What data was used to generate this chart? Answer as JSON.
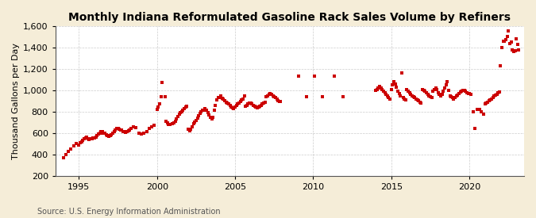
{
  "title": "Monthly Indiana Reformulated Gasoline Rack Sales Volume by Refiners",
  "ylabel": "Thousand Gallons per Day",
  "source": "Source: U.S. Energy Information Administration",
  "ylim": [
    200,
    1600
  ],
  "yticks": [
    200,
    400,
    600,
    800,
    1000,
    1200,
    1400,
    1600
  ],
  "xlim_start": 1993.5,
  "xlim_end": 2023.5,
  "xticks": [
    1995,
    2000,
    2005,
    2010,
    2015,
    2020
  ],
  "dot_color": "#cc0000",
  "bg_color": "#f5edd8",
  "plot_bg_color": "#ffffff",
  "grid_color": "#aaaaaa",
  "title_fontsize": 10,
  "label_fontsize": 8,
  "tick_fontsize": 8,
  "marker_size": 5,
  "data_x": [
    1994.0,
    1994.167,
    1994.333,
    1994.5,
    1994.667,
    1994.833,
    1995.0,
    1995.083,
    1995.167,
    1995.25,
    1995.333,
    1995.417,
    1995.5,
    1995.583,
    1995.667,
    1995.75,
    1995.833,
    1995.917,
    1996.0,
    1996.083,
    1996.167,
    1996.25,
    1996.333,
    1996.417,
    1996.5,
    1996.583,
    1996.667,
    1996.75,
    1996.833,
    1996.917,
    1997.0,
    1997.083,
    1997.167,
    1997.25,
    1997.333,
    1997.417,
    1997.5,
    1997.583,
    1997.667,
    1997.75,
    1997.833,
    1997.917,
    1998.0,
    1998.083,
    1998.167,
    1998.25,
    1998.333,
    1998.5,
    1998.667,
    1998.833,
    1999.0,
    1999.167,
    1999.333,
    1999.5,
    1999.667,
    1999.833,
    2000.0,
    2000.083,
    2000.167,
    2000.25,
    2000.333,
    2000.5,
    2000.583,
    2000.667,
    2000.75,
    2000.833,
    2001.0,
    2001.083,
    2001.167,
    2001.25,
    2001.333,
    2001.417,
    2001.5,
    2001.583,
    2001.667,
    2001.75,
    2001.833,
    2001.917,
    2002.0,
    2002.083,
    2002.167,
    2002.25,
    2002.333,
    2002.417,
    2002.5,
    2002.583,
    2002.667,
    2002.75,
    2002.833,
    2002.917,
    2003.0,
    2003.083,
    2003.167,
    2003.25,
    2003.333,
    2003.417,
    2003.5,
    2003.583,
    2003.667,
    2003.75,
    2003.833,
    2003.917,
    2004.0,
    2004.083,
    2004.167,
    2004.25,
    2004.333,
    2004.417,
    2004.5,
    2004.583,
    2004.667,
    2004.75,
    2004.833,
    2004.917,
    2005.0,
    2005.083,
    2005.167,
    2005.25,
    2005.333,
    2005.417,
    2005.5,
    2005.583,
    2005.667,
    2005.75,
    2005.833,
    2005.917,
    2006.0,
    2006.083,
    2006.167,
    2006.25,
    2006.333,
    2006.417,
    2006.5,
    2006.583,
    2006.667,
    2006.75,
    2006.833,
    2006.917,
    2007.0,
    2007.083,
    2007.167,
    2007.25,
    2007.333,
    2007.417,
    2007.5,
    2007.583,
    2007.667,
    2007.75,
    2007.833,
    2007.917,
    2009.083,
    2009.583,
    2010.083,
    2010.583,
    2011.333,
    2011.917,
    2014.0,
    2014.083,
    2014.167,
    2014.25,
    2014.333,
    2014.417,
    2014.5,
    2014.583,
    2014.667,
    2014.75,
    2014.833,
    2014.917,
    2015.0,
    2015.083,
    2015.167,
    2015.25,
    2015.333,
    2015.417,
    2015.5,
    2015.583,
    2015.667,
    2015.75,
    2015.833,
    2015.917,
    2016.0,
    2016.083,
    2016.167,
    2016.25,
    2016.333,
    2016.417,
    2016.5,
    2016.583,
    2016.667,
    2016.75,
    2016.833,
    2016.917,
    2017.0,
    2017.083,
    2017.167,
    2017.25,
    2017.333,
    2017.417,
    2017.5,
    2017.583,
    2017.667,
    2017.75,
    2017.833,
    2017.917,
    2018.0,
    2018.083,
    2018.167,
    2018.25,
    2018.333,
    2018.417,
    2018.5,
    2018.583,
    2018.667,
    2018.75,
    2018.833,
    2018.917,
    2019.0,
    2019.083,
    2019.167,
    2019.25,
    2019.333,
    2019.417,
    2019.5,
    2019.583,
    2019.667,
    2019.75,
    2019.833,
    2019.917,
    2020.0,
    2020.083,
    2020.25,
    2020.333,
    2020.5,
    2020.583,
    2020.667,
    2020.75,
    2020.917,
    2021.0,
    2021.083,
    2021.167,
    2021.25,
    2021.333,
    2021.417,
    2021.5,
    2021.583,
    2021.667,
    2021.75,
    2021.833,
    2021.917,
    2022.0,
    2022.083,
    2022.167,
    2022.25,
    2022.333,
    2022.417,
    2022.5,
    2022.583,
    2022.667,
    2022.75,
    2022.833,
    2022.917,
    2023.0,
    2023.083,
    2023.167
  ],
  "data_y": [
    370,
    400,
    430,
    450,
    480,
    500,
    490,
    510,
    520,
    530,
    545,
    555,
    560,
    550,
    540,
    545,
    550,
    555,
    555,
    565,
    575,
    590,
    600,
    610,
    610,
    600,
    595,
    585,
    575,
    570,
    575,
    585,
    600,
    615,
    630,
    640,
    640,
    635,
    630,
    625,
    615,
    610,
    605,
    610,
    620,
    630,
    645,
    655,
    650,
    595,
    590,
    600,
    615,
    640,
    660,
    670,
    820,
    840,
    875,
    940,
    1075,
    940,
    710,
    695,
    680,
    680,
    685,
    695,
    710,
    730,
    755,
    775,
    790,
    800,
    815,
    830,
    840,
    850,
    635,
    620,
    635,
    655,
    685,
    705,
    720,
    740,
    760,
    785,
    800,
    810,
    815,
    830,
    810,
    790,
    770,
    750,
    730,
    750,
    810,
    860,
    910,
    930,
    930,
    945,
    925,
    915,
    900,
    890,
    880,
    870,
    855,
    845,
    835,
    825,
    840,
    855,
    870,
    880,
    895,
    910,
    920,
    945,
    850,
    860,
    870,
    880,
    880,
    870,
    860,
    850,
    840,
    835,
    840,
    850,
    860,
    870,
    880,
    890,
    940,
    950,
    960,
    970,
    960,
    950,
    940,
    930,
    920,
    905,
    895,
    895,
    1130,
    940,
    1130,
    940,
    1130,
    940,
    1000,
    1010,
    1020,
    1035,
    1020,
    1010,
    995,
    980,
    965,
    950,
    935,
    920,
    1010,
    1050,
    1080,
    1055,
    1025,
    995,
    970,
    950,
    1160,
    935,
    920,
    910,
    1005,
    990,
    975,
    960,
    950,
    940,
    930,
    920,
    910,
    900,
    890,
    880,
    1010,
    1000,
    990,
    975,
    960,
    950,
    940,
    930,
    995,
    1010,
    1020,
    1010,
    980,
    960,
    945,
    960,
    990,
    1020,
    1050,
    1080,
    1000,
    950,
    940,
    930,
    920,
    930,
    945,
    958,
    972,
    982,
    992,
    1002,
    1000,
    990,
    980,
    970,
    970,
    960,
    800,
    640,
    820,
    820,
    820,
    800,
    775,
    870,
    880,
    890,
    900,
    910,
    920,
    935,
    945,
    955,
    965,
    975,
    985,
    1230,
    1400,
    1460,
    1460,
    1470,
    1500,
    1555,
    1440,
    1450,
    1380,
    1360,
    1370,
    1480,
    1430,
    1375
  ]
}
